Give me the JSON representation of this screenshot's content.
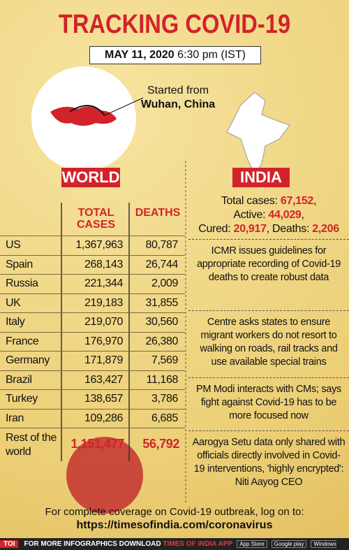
{
  "header": {
    "title": "TRACKING COVID-19",
    "date": "MAY 11, 2020",
    "time": "6:30 pm (IST)"
  },
  "map_note": {
    "line1": "Started from",
    "line2": "Wuhan, China"
  },
  "world": {
    "heading": "WORLD",
    "columns": [
      "TOTAL CASES",
      "DEATHS"
    ],
    "rows": [
      [
        "US",
        "1,367,963",
        "80,787"
      ],
      [
        "Spain",
        "268,143",
        "26,744"
      ],
      [
        "Russia",
        "221,344",
        "2,009"
      ],
      [
        "UK",
        "219,183",
        "31,855"
      ],
      [
        "Italy",
        "219,070",
        "30,560"
      ],
      [
        "France",
        "176,970",
        "26,380"
      ],
      [
        "Germany",
        "171,879",
        "7,569"
      ],
      [
        "Brazil",
        "163,427",
        "11,168"
      ],
      [
        "Turkey",
        "138,657",
        "3,786"
      ],
      [
        "Iran",
        "109,286",
        "6,685"
      ]
    ],
    "total": [
      "Rest of the world",
      "1,151,477",
      "56,792"
    ]
  },
  "india": {
    "heading": "INDIA",
    "stats": [
      {
        "label": "Total cases:",
        "value": "67,152",
        "suffix": ","
      },
      {
        "label": "Active:",
        "value": "44,029",
        "suffix": ","
      },
      {
        "label": "Cured:",
        "value": "20,917",
        "suffix": ","
      },
      {
        "label": "Deaths:",
        "value": "2,206"
      }
    ],
    "news": [
      "ICMR issues guidelines for appropriate recording of Covid-19 deaths to create robust data",
      "Centre asks states to ensure migrant workers do not resort to walking on roads, rail tracks and use available special trains",
      "PM Modi interacts with CMs; says fight against Covid-19 has to be more focused now",
      "Aarogya Setu data only shared with officials directly involved in Covid-19 interventions, 'highly encrypted': Niti Aayog CEO"
    ]
  },
  "footer": {
    "text": "For complete coverage on Covid-19 outbreak, log on to:",
    "url": "https://timesofindia.com/coronavirus"
  },
  "bar": {
    "logo": "TOI",
    "text": "FOR MORE  INFOGRAPHICS DOWNLOAD",
    "app": "TIMES OF INDIA APP",
    "stores": [
      "App Store",
      "Google play",
      "Windows Phone"
    ]
  }
}
